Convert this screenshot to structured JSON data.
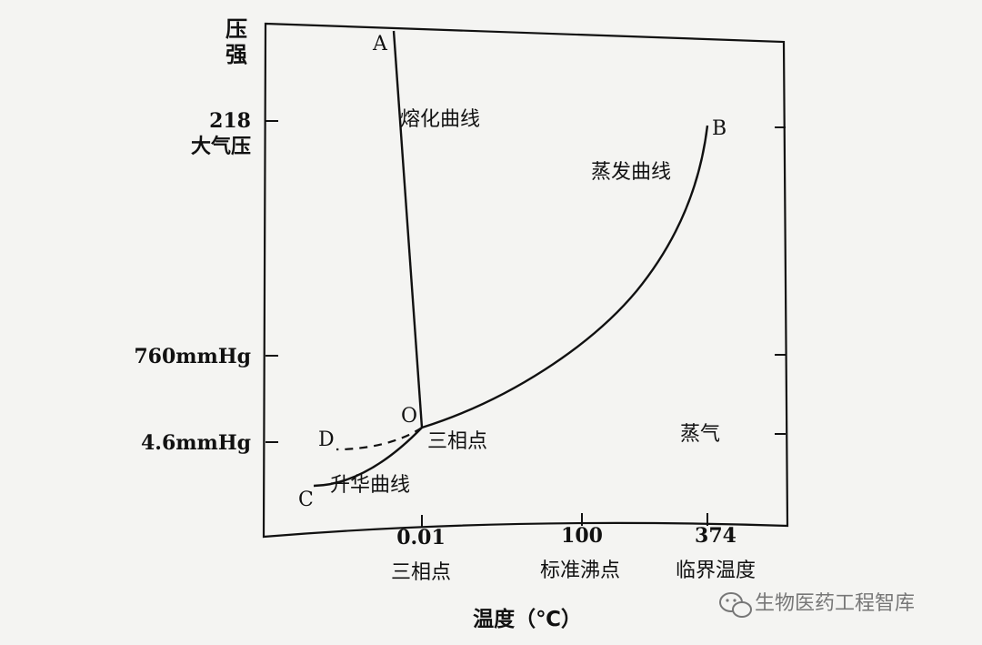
{
  "chart_data": {
    "type": "line",
    "title": "",
    "ylabel": "压强",
    "xlabel": "温度（℃）",
    "y_ticks": [
      {
        "label": "4.6mmHg",
        "value": "4.6 mmHg"
      },
      {
        "label": "760mmHg",
        "value": "760 mmHg"
      },
      {
        "label_value": "218",
        "label_unit": "大气压",
        "value": "218 atm"
      }
    ],
    "x_ticks": [
      {
        "value_label": "0.01",
        "name": "三相点",
        "value": 0.01
      },
      {
        "value_label": "100",
        "name": "标准沸点",
        "value": 100
      },
      {
        "value_label": "374",
        "name": "临界温度",
        "value": 374
      }
    ],
    "series": [
      {
        "name": "熔化曲线",
        "from": "O",
        "to": "A",
        "style": "solid"
      },
      {
        "name": "蒸发曲线",
        "from": "O",
        "to": "B",
        "style": "solid"
      },
      {
        "name": "升华曲线",
        "from": "O",
        "to": "C",
        "style": "solid"
      },
      {
        "name": "",
        "from": "O",
        "to": "D",
        "style": "dashed"
      }
    ],
    "points": {
      "A": "A",
      "B": "B",
      "C": "C",
      "D": "D",
      "O": "O"
    },
    "annotations": {
      "triple_point": "三相点",
      "region_vapor": "蒸气"
    }
  },
  "watermark": {
    "text": "生物医药工程智库",
    "icon": "wechat-icon"
  }
}
